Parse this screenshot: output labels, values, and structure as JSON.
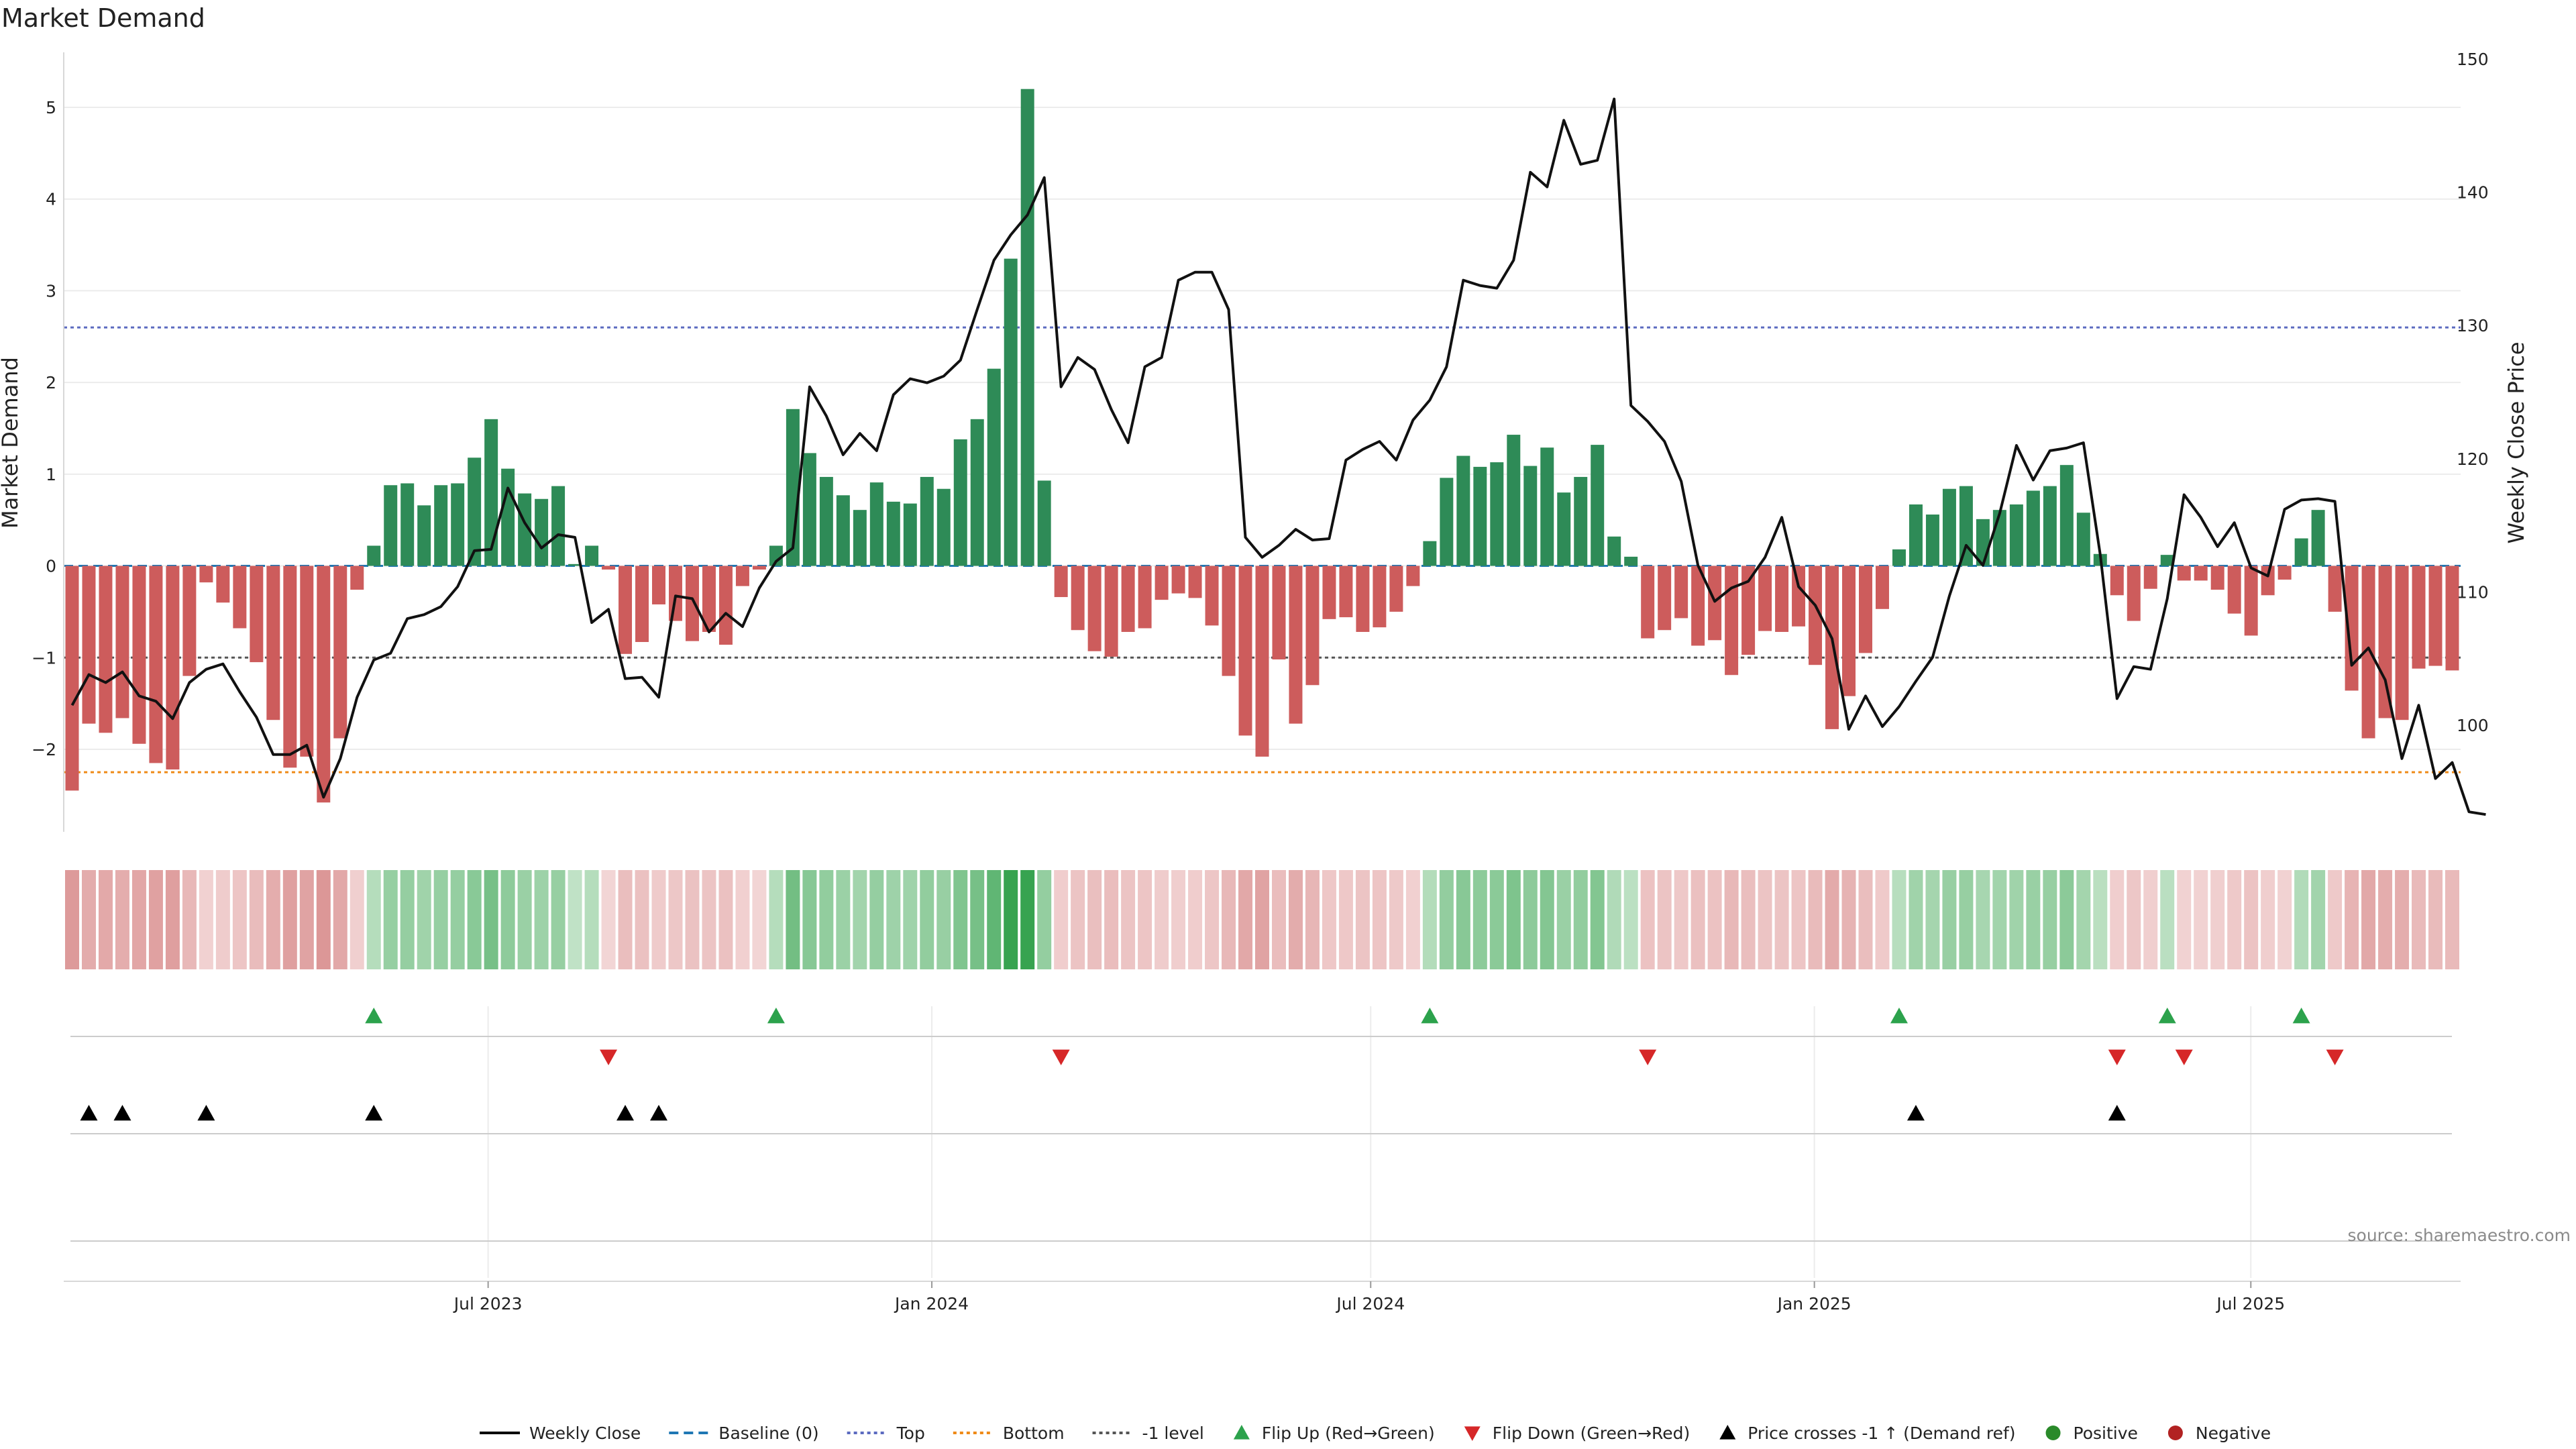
{
  "chart_data": {
    "type": "bar",
    "title": "Market Demand",
    "ylabel": "Market Demand",
    "y2label": "Weekly Close Price",
    "xlabel": "",
    "ylim": [
      -2.9,
      5.6
    ],
    "y2lim": [
      92.0,
      150.5
    ],
    "yticks": [
      -2,
      -1,
      0,
      1,
      2,
      3,
      4,
      5
    ],
    "y2ticks": [
      100,
      110,
      120,
      130,
      140,
      150
    ],
    "x_start": "2023-01-06",
    "x_end": "2025-09-26",
    "xticks": [
      {
        "date": "2023-07-01",
        "label": "Jul 2023"
      },
      {
        "date": "2024-01-01",
        "label": "Jan 2024"
      },
      {
        "date": "2024-07-01",
        "label": "Jul 2024"
      },
      {
        "date": "2025-01-01",
        "label": "Jan 2025"
      },
      {
        "date": "2025-07-01",
        "label": "Jul 2025"
      }
    ],
    "reference_lines": [
      {
        "name": "Top",
        "value": 2.6,
        "color": "#5c6bc0"
      },
      {
        "name": "Bottom",
        "value": -2.25,
        "color": "#ef8a17"
      },
      {
        "name": "-1 level",
        "value": -1.0,
        "color": "#555555"
      },
      {
        "name": "Baseline (0)",
        "value": 0,
        "color": "#1f77b4"
      }
    ],
    "series": [
      {
        "name": "Market Demand",
        "type": "bar",
        "values": [
          -2.45,
          -1.72,
          -1.82,
          -1.66,
          -1.94,
          -2.15,
          -2.22,
          -1.2,
          -0.18,
          -0.4,
          -0.68,
          -1.05,
          -1.68,
          -2.2,
          -2.08,
          -2.58,
          -1.88,
          -0.26,
          0.22,
          0.88,
          0.9,
          0.66,
          0.88,
          0.9,
          1.18,
          1.6,
          1.06,
          0.79,
          0.73,
          0.87,
          0.02,
          0.22,
          -0.04,
          -0.96,
          -0.83,
          -0.42,
          -0.6,
          -0.82,
          -0.72,
          -0.86,
          -0.22,
          -0.04,
          0.22,
          1.71,
          1.23,
          0.97,
          0.77,
          0.61,
          0.91,
          0.7,
          0.68,
          0.97,
          0.84,
          1.38,
          1.6,
          2.15,
          3.35,
          5.2,
          0.93,
          -0.34,
          -0.7,
          -0.93,
          -0.99,
          -0.72,
          -0.68,
          -0.37,
          -0.3,
          -0.35,
          -0.65,
          -1.2,
          -1.85,
          -2.08,
          -1.02,
          -1.72,
          -1.3,
          -0.58,
          -0.56,
          -0.72,
          -0.67,
          -0.5,
          -0.22,
          0.27,
          0.96,
          1.2,
          1.08,
          1.13,
          1.43,
          1.09,
          1.29,
          0.8,
          0.97,
          1.32,
          0.32,
          0.1,
          -0.79,
          -0.7,
          -0.57,
          -0.87,
          -0.81,
          -1.19,
          -0.97,
          -0.71,
          -0.72,
          -0.66,
          -1.08,
          -1.78,
          -1.42,
          -0.95,
          -0.47,
          0.18,
          0.67,
          0.56,
          0.84,
          0.87,
          0.51,
          0.61,
          0.67,
          0.82,
          0.87,
          1.1,
          0.58,
          0.13,
          -0.32,
          -0.6,
          -0.25,
          0.12,
          -0.16,
          -0.16,
          -0.26,
          -0.52,
          -0.76,
          -0.32,
          -0.15,
          0.3,
          0.61,
          -0.5,
          -1.36,
          -1.88,
          -1.66,
          -1.68,
          -1.12,
          -1.09,
          -1.14
        ]
      },
      {
        "name": "Weekly Close",
        "type": "line",
        "values": [
          101.5,
          103.8,
          103.2,
          104.0,
          102.2,
          101.8,
          100.5,
          103.2,
          104.2,
          104.6,
          102.5,
          100.6,
          97.8,
          97.8,
          98.5,
          94.6,
          97.5,
          102.1,
          104.9,
          105.4,
          108.0,
          108.3,
          108.9,
          110.4,
          113.1,
          113.2,
          117.8,
          115.2,
          113.3,
          114.3,
          114.1,
          107.7,
          108.7,
          103.5,
          103.6,
          102.1,
          109.7,
          109.5,
          107.0,
          108.4,
          107.4,
          110.3,
          112.3,
          113.3,
          125.4,
          123.2,
          120.3,
          121.9,
          120.6,
          124.8,
          126.0,
          125.7,
          126.2,
          127.4,
          131.2,
          134.9,
          136.8,
          138.3,
          141.1,
          125.4,
          127.6,
          126.7,
          123.7,
          121.2,
          126.9,
          127.6,
          133.4,
          134.0,
          134.0,
          131.2,
          114.1,
          112.6,
          113.5,
          114.7,
          113.9,
          114.0,
          119.9,
          120.7,
          121.3,
          119.9,
          122.9,
          124.4,
          126.9,
          133.4,
          133.0,
          132.8,
          134.9,
          141.5,
          140.4,
          145.4,
          142.1,
          142.4,
          147.0,
          124.0,
          122.8,
          121.3,
          118.3,
          112.0,
          109.3,
          110.3,
          110.8,
          112.6,
          115.6,
          110.4,
          109.0,
          106.5,
          99.7,
          102.2,
          99.9,
          101.4,
          103.3,
          105.1,
          109.7,
          113.5,
          112.0,
          115.9,
          121.0,
          118.4,
          120.6,
          120.8,
          121.2,
          112.8,
          102.0,
          104.4,
          104.2,
          109.5,
          117.3,
          115.6,
          113.4,
          115.2,
          111.8,
          111.2,
          116.2,
          116.9,
          117.0,
          116.8,
          104.5,
          105.8,
          103.4,
          97.5,
          101.5,
          96.0,
          97.2,
          93.5,
          93.3
        ]
      }
    ],
    "regime_bands": [
      {
        "name": "Market Demand (Positive)",
        "color": "#2e8b57"
      },
      {
        "name": "Market Demand (Negative)",
        "color": "#cd5c5c"
      }
    ],
    "events": {
      "flip_up_weeks": [
        18,
        42,
        81,
        109,
        125,
        133
      ],
      "flip_down_weeks": [
        32,
        59,
        94,
        122,
        126,
        135
      ],
      "price_cross_weeks": [
        1,
        3,
        8,
        18,
        33,
        35,
        110,
        122
      ]
    },
    "legend": [
      {
        "label": "Weekly Close",
        "kind": "line",
        "color": "#000000"
      },
      {
        "label": "Baseline (0)",
        "kind": "dashed",
        "color": "#1f77b4"
      },
      {
        "label": "Top",
        "kind": "dotted",
        "color": "#5c6bc0"
      },
      {
        "label": "Bottom",
        "kind": "dotted",
        "color": "#ef8a17"
      },
      {
        "label": "-1 level",
        "kind": "dotted",
        "color": "#555555"
      },
      {
        "label": "Flip Up (Red→Green)",
        "kind": "tri-up",
        "color": "#2ca24c"
      },
      {
        "label": "Flip Down (Green→Red)",
        "kind": "tri-down",
        "color": "#d62728"
      },
      {
        "label": "Price crosses -1 ↑ (Demand ref)",
        "kind": "tri-up",
        "color": "#000000"
      },
      {
        "label": "Positive",
        "kind": "dot",
        "color": "#2a8a2a"
      },
      {
        "label": "Negative",
        "kind": "dot",
        "color": "#b22222"
      }
    ],
    "legend_position": "bottom",
    "grid": true,
    "source": "source: sharemaestro.com"
  }
}
